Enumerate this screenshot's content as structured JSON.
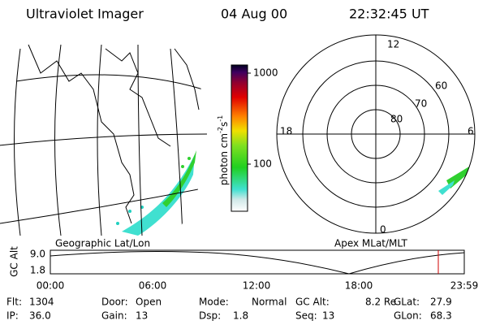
{
  "header": {
    "title": "Ultraviolet Imager",
    "date": "04 Aug 00",
    "time": "22:32:45 UT"
  },
  "colorbar": {
    "ticks": [
      "1000",
      "100"
    ],
    "unit": {
      "base": "photon cm",
      "exp1": "-2",
      "mid": "s",
      "exp2": "-1"
    }
  },
  "polar": {
    "mlt_labels": [
      "12",
      "6",
      "18",
      "0"
    ],
    "lat_labels": [
      "80",
      "70",
      "60"
    ]
  },
  "panel_labels": [
    "Geographic Lat/Lon",
    "Apex MLat/MLT"
  ],
  "alt_plot": {
    "axis_label": "GC Alt",
    "yticks": [
      "9.0",
      "1.8"
    ],
    "xticks": [
      "00:00",
      "06:00",
      "12:00",
      "18:00",
      "23:59"
    ]
  },
  "footer": [
    [
      {
        "label": "Flt:",
        "value": "1304"
      },
      {
        "label": "Door:",
        "value": "Open"
      },
      {
        "label": "Mode:",
        "value": "Normal"
      },
      {
        "label": "GC Alt:",
        "value": "8.2 Re"
      },
      {
        "label": "GLat:",
        "value": "27.9"
      }
    ],
    [
      {
        "label": "IP:",
        "value": "36.0"
      },
      {
        "label": "Gain:",
        "value": "13"
      },
      {
        "label": "Dsp:",
        "value": "1.8"
      },
      {
        "label": "Seq:",
        "value": "13"
      },
      {
        "label": "GLon:",
        "value": "68.3"
      }
    ]
  ]
}
